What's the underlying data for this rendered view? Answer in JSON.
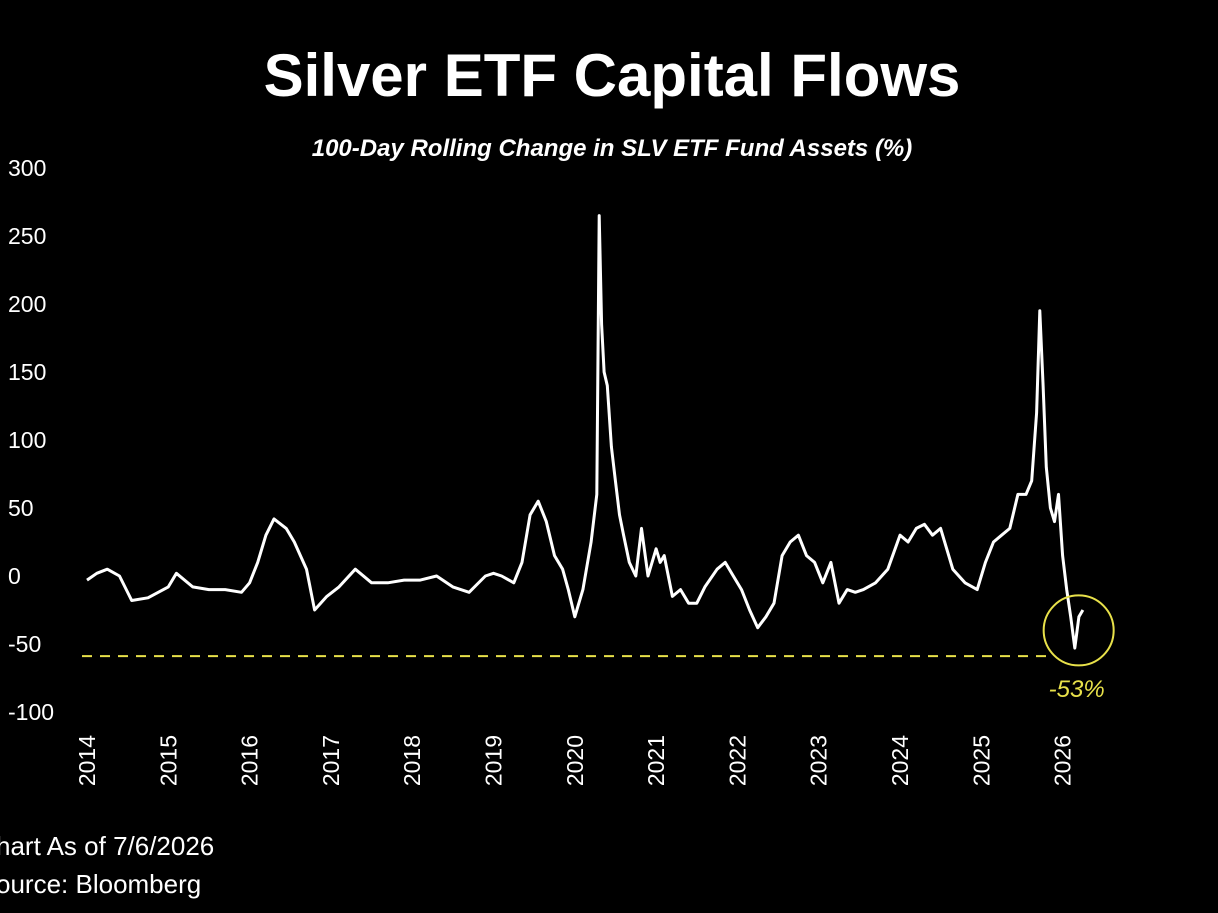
{
  "chart_data": {
    "type": "line",
    "title": "Silver ETF Capital Flows",
    "subtitle": "100-Day Rolling Change in SLV ETF Fund Assets (%)",
    "xlabel": "",
    "ylabel": "",
    "xlim": [
      2014,
      2026.6
    ],
    "ylim": [
      -100,
      300
    ],
    "yticks": [
      300,
      250,
      200,
      150,
      100,
      50,
      0,
      -50,
      -100
    ],
    "xticks": [
      "2014",
      "2015",
      "2016",
      "2017",
      "2018",
      "2019",
      "2020",
      "2021",
      "2022",
      "2023",
      "2024",
      "2025",
      "2026"
    ],
    "grid": false,
    "legend": "none",
    "series": [
      {
        "color": "#ffffff",
        "x": [
          2014.0,
          2014.12,
          2014.25,
          2014.4,
          2014.55,
          2014.75,
          2015.0,
          2015.1,
          2015.3,
          2015.5,
          2015.7,
          2015.9,
          2016.0,
          2016.1,
          2016.2,
          2016.3,
          2016.45,
          2016.55,
          2016.7,
          2016.8,
          2016.95,
          2017.1,
          2017.3,
          2017.5,
          2017.7,
          2017.9,
          2018.1,
          2018.3,
          2018.5,
          2018.7,
          2018.9,
          2019.0,
          2019.1,
          2019.25,
          2019.35,
          2019.45,
          2019.55,
          2019.65,
          2019.75,
          2019.85,
          2019.92,
          2020.0,
          2020.1,
          2020.2,
          2020.27,
          2020.3,
          2020.33,
          2020.36,
          2020.4,
          2020.45,
          2020.5,
          2020.55,
          2020.6,
          2020.67,
          2020.75,
          2020.82,
          2020.9,
          2021.0,
          2021.05,
          2021.1,
          2021.2,
          2021.3,
          2021.4,
          2021.5,
          2021.6,
          2021.75,
          2021.85,
          2021.95,
          2022.05,
          2022.15,
          2022.25,
          2022.35,
          2022.45,
          2022.55,
          2022.65,
          2022.75,
          2022.85,
          2022.95,
          2023.05,
          2023.15,
          2023.25,
          2023.35,
          2023.45,
          2023.55,
          2023.7,
          2023.85,
          2024.0,
          2024.1,
          2024.2,
          2024.3,
          2024.4,
          2024.5,
          2024.65,
          2024.8,
          2024.95,
          2025.05,
          2025.15,
          2025.25,
          2025.35,
          2025.45,
          2025.55,
          2025.62,
          2025.68,
          2025.72,
          2025.76,
          2025.8,
          2025.85,
          2025.9,
          2025.95,
          2026.0,
          2026.05,
          2026.1,
          2026.15,
          2026.2,
          2026.25
        ],
        "values": [
          -3,
          2,
          5,
          0,
          -18,
          -16,
          -8,
          2,
          -8,
          -10,
          -10,
          -12,
          -5,
          10,
          30,
          42,
          35,
          25,
          5,
          -25,
          -15,
          -8,
          5,
          -5,
          -5,
          -3,
          -3,
          0,
          -8,
          -12,
          0,
          2,
          0,
          -5,
          10,
          45,
          55,
          40,
          15,
          5,
          -10,
          -30,
          -10,
          25,
          60,
          265,
          185,
          150,
          140,
          95,
          70,
          45,
          30,
          10,
          0,
          35,
          0,
          20,
          10,
          15,
          -15,
          -10,
          -20,
          -20,
          -8,
          5,
          10,
          0,
          -10,
          -25,
          -38,
          -30,
          -20,
          15,
          25,
          30,
          15,
          10,
          -5,
          10,
          -20,
          -10,
          -12,
          -10,
          -5,
          5,
          30,
          25,
          35,
          38,
          30,
          35,
          5,
          -5,
          -10,
          10,
          25,
          30,
          35,
          60,
          60,
          70,
          120,
          195,
          140,
          80,
          50,
          40,
          60,
          15,
          -10,
          -30,
          -53,
          -30,
          -25
        ]
      }
    ],
    "annotations": [
      {
        "text": "-53%",
        "x": 2026.05,
        "y": -53,
        "color": "#e8e14a"
      }
    ],
    "reference_line": {
      "y": -53,
      "color": "#e8e14a",
      "style": "dashed"
    }
  },
  "footer": {
    "as_of": "hart As of 7/6/2026",
    "source": "ource: Bloomberg"
  }
}
